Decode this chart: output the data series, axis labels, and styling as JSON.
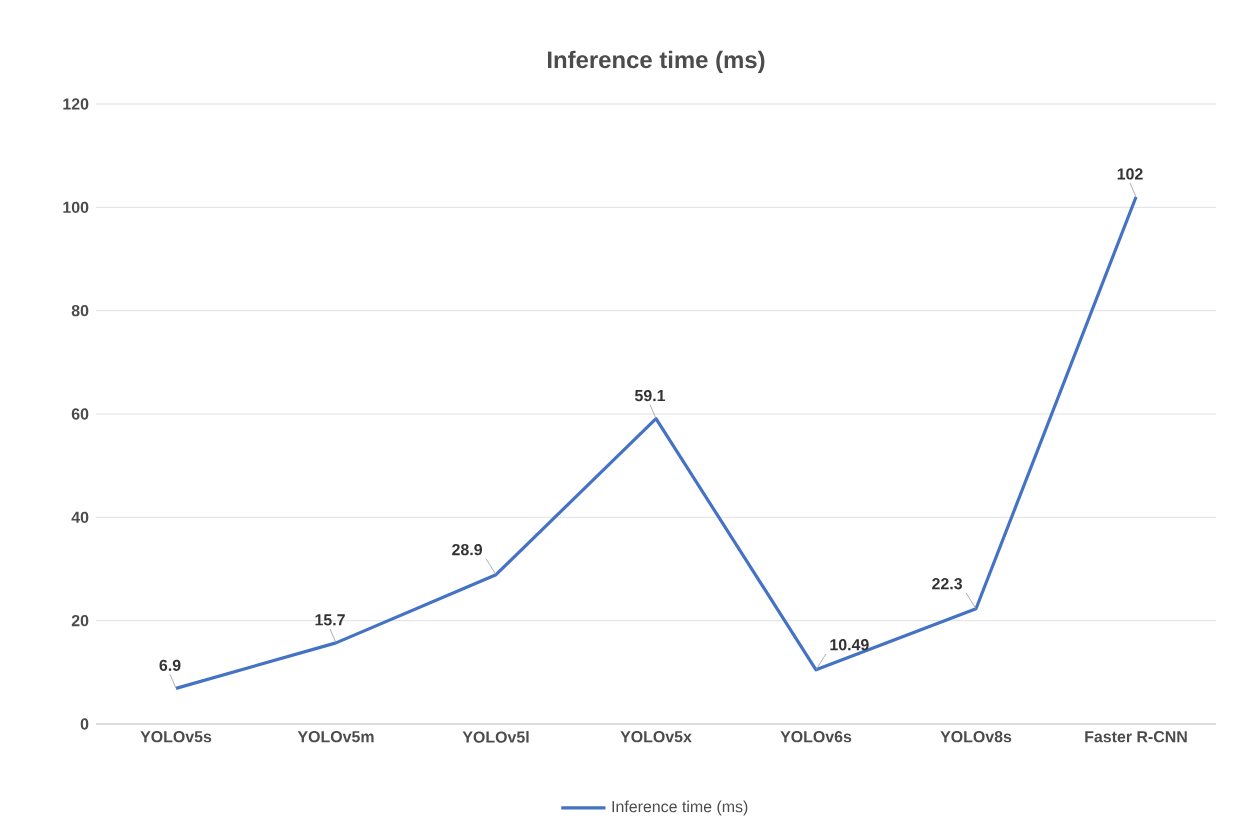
{
  "chart_data": {
    "type": "line",
    "title": "Inference time (ms)",
    "categories": [
      "YOLOv5s",
      "YOLOv5m",
      "YOLOv5l",
      "YOLOv5x",
      "YOLOv6s",
      "YOLOv8s",
      "Faster R-CNN"
    ],
    "series": [
      {
        "name": "Inference time (ms)",
        "color": "#4472c4",
        "values": [
          6.9,
          15.7,
          28.9,
          59.1,
          10.49,
          22.3,
          102
        ]
      }
    ],
    "ylim": [
      0,
      120
    ],
    "yticks": [
      0,
      20,
      40,
      60,
      80,
      100,
      120
    ],
    "grid": "y",
    "legend": "bottom",
    "data_labels": true,
    "marker": "none",
    "line_style": "solid"
  }
}
